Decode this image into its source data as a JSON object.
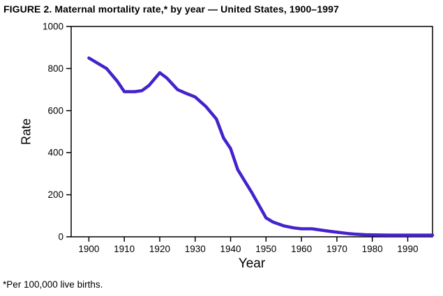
{
  "figure": {
    "title": "FIGURE 2. Maternal mortality rate,* by year — United States, 1900–1997",
    "footnote": "*Per 100,000 live births."
  },
  "chart_data": {
    "type": "line",
    "title": "FIGURE 2. Maternal mortality rate,* by year — United States, 1900–1997",
    "xlabel": "Year",
    "ylabel": "Rate",
    "xlim": [
      1895,
      1997
    ],
    "ylim": [
      0,
      1000
    ],
    "x_ticks": [
      1900,
      1910,
      1920,
      1930,
      1940,
      1950,
      1960,
      1970,
      1980,
      1990
    ],
    "y_ticks": [
      0,
      200,
      400,
      600,
      800,
      1000
    ],
    "grid": false,
    "legend": "none",
    "line_color": "#4422cc",
    "axis_color": "#000000",
    "series": [
      {
        "name": "Maternal mortality rate per 100,000 live births",
        "x": [
          1900,
          1902,
          1905,
          1908,
          1910,
          1913,
          1915,
          1917,
          1920,
          1922,
          1925,
          1927,
          1930,
          1933,
          1935,
          1936,
          1938,
          1940,
          1942,
          1944,
          1946,
          1948,
          1950,
          1952,
          1955,
          1958,
          1960,
          1963,
          1965,
          1968,
          1970,
          1973,
          1975,
          1978,
          1980,
          1985,
          1990,
          1995,
          1997
        ],
        "y": [
          850,
          830,
          800,
          740,
          690,
          690,
          695,
          720,
          780,
          755,
          700,
          685,
          665,
          620,
          580,
          560,
          470,
          420,
          320,
          265,
          210,
          150,
          90,
          70,
          52,
          42,
          38,
          38,
          33,
          26,
          22,
          16,
          13,
          10,
          9,
          8,
          8,
          8,
          8
        ]
      }
    ]
  }
}
